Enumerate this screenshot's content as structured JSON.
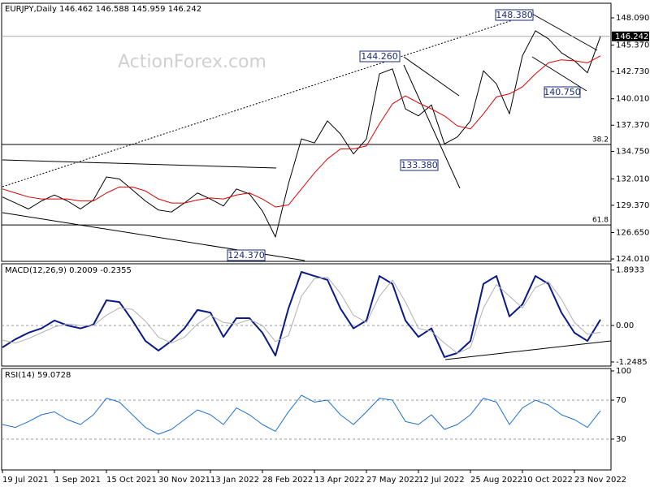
{
  "chart_data": [
    {
      "type": "line",
      "title": "EURJPY,Daily  146.462 146.588 145.959 146.242",
      "watermark": "ActionForex.com",
      "ylim": [
        123.77,
        149.55
      ],
      "yticks": [
        {
          "value": 148.09,
          "label": "148.090"
        },
        {
          "value": 145.37,
          "label": "145.370"
        },
        {
          "value": 142.73,
          "label": "142.730"
        },
        {
          "value": 140.01,
          "label": "140.010"
        },
        {
          "value": 137.37,
          "label": "137.370"
        },
        {
          "value": 134.75,
          "label": "134.750"
        },
        {
          "value": 132.01,
          "label": "132.010"
        },
        {
          "value": 129.37,
          "label": "129.370"
        },
        {
          "value": 126.65,
          "label": "126.650"
        },
        {
          "value": 124.01,
          "label": "124.010"
        }
      ],
      "last_price": 146.242,
      "levels": [
        {
          "value": 135.44,
          "label": "38.2"
        },
        {
          "value": 127.41,
          "label": "61.8"
        }
      ],
      "annotations": [
        "148.380",
        "144.260",
        "140.750",
        "133.380",
        "124.370"
      ],
      "series": [
        {
          "color": "#000000",
          "values": [
            130.2,
            129.6,
            129.0,
            129.8,
            130.4,
            129.8,
            129.0,
            129.9,
            132.2,
            132.0,
            130.9,
            129.8,
            128.9,
            128.7,
            129.6,
            130.6,
            130.0,
            129.3,
            131.0,
            130.5,
            128.8,
            126.2,
            131.5,
            136.0,
            135.6,
            137.8,
            136.5,
            134.5,
            136.0,
            142.5,
            143.0,
            139.0,
            138.3,
            139.4,
            135.5,
            136.2,
            137.8,
            142.8,
            141.5,
            138.5,
            144.3,
            146.8,
            146.0,
            144.6,
            143.8,
            142.6,
            146.242
          ]
        },
        {
          "color": "#e00000",
          "values": [
            131.0,
            130.6,
            130.2,
            130.0,
            130.0,
            130.0,
            129.8,
            129.8,
            130.6,
            131.2,
            131.2,
            130.8,
            130.0,
            129.6,
            129.6,
            129.9,
            130.1,
            130.0,
            130.4,
            130.6,
            130.0,
            129.2,
            129.4,
            131.0,
            132.6,
            134.0,
            135.0,
            135.0,
            135.3,
            137.5,
            139.5,
            140.3,
            139.6,
            139.0,
            138.3,
            137.3,
            137.0,
            138.5,
            140.2,
            140.5,
            141.2,
            142.5,
            143.6,
            143.9,
            143.8,
            143.6,
            144.3
          ]
        }
      ]
    },
    {
      "type": "line",
      "title": "MACD(12,26,9) 0.2009 -0.2355",
      "ylim": [
        -1.36,
        2.08
      ],
      "yticks": [
        1.8933,
        {
          "value": 0,
          "label": "0.00"
        },
        -1.2485
      ],
      "zero_line": true,
      "series": [
        {
          "color": "#0a1a8a",
          "width": 2,
          "values": [
            -0.75,
            -0.47,
            -0.25,
            -0.1,
            0.17,
            0.0,
            -0.1,
            0.03,
            0.86,
            0.8,
            0.17,
            -0.53,
            -0.86,
            -0.53,
            -0.1,
            0.53,
            0.44,
            -0.39,
            0.25,
            0.25,
            -0.25,
            -1.03,
            0.58,
            1.83,
            1.69,
            1.56,
            0.58,
            -0.1,
            0.17,
            1.69,
            1.42,
            0.17,
            -0.39,
            -0.1,
            -1.08,
            -0.94,
            -0.53,
            1.42,
            1.69,
            0.31,
            0.72,
            1.69,
            1.42,
            0.44,
            -0.25,
            -0.53,
            0.2009
          ]
        },
        {
          "color": "#b0b0b0",
          "width": 1,
          "values": [
            -0.5,
            -0.6,
            -0.45,
            -0.25,
            -0.05,
            0.05,
            0.0,
            0.0,
            0.35,
            0.6,
            0.55,
            0.15,
            -0.4,
            -0.6,
            -0.4,
            0.05,
            0.35,
            0.1,
            0.05,
            0.2,
            0.0,
            -0.55,
            -0.35,
            1.0,
            1.6,
            1.65,
            1.1,
            0.35,
            0.1,
            1.0,
            1.55,
            0.8,
            -0.1,
            -0.2,
            -0.6,
            -0.95,
            -0.75,
            0.6,
            1.4,
            1.0,
            0.6,
            1.3,
            1.5,
            0.9,
            0.1,
            -0.3,
            -0.2355
          ]
        }
      ]
    },
    {
      "type": "line",
      "title": "RSI(14) 59.0728",
      "ylim": [
        0,
        100
      ],
      "yticks": [
        100,
        70,
        30
      ],
      "grid": true,
      "categories": [
        "19 Jul 2021",
        null,
        null,
        null,
        "1 Sep 2021",
        null,
        null,
        null,
        "15 Oct 2021",
        null,
        null,
        null,
        "30 Nov 2021",
        null,
        null,
        null,
        "13 Jan 2022",
        null,
        null,
        null,
        "28 Feb 2022",
        null,
        null,
        null,
        "13 Apr 2022",
        null,
        null,
        null,
        "27 May 2022",
        null,
        null,
        null,
        "12 Jul 2022",
        null,
        null,
        null,
        "25 Aug 2022",
        null,
        null,
        null,
        "10 Oct 2022",
        null,
        null,
        null,
        "23 Nov 2022",
        null,
        null
      ],
      "series": [
        {
          "color": "#1e6fd0",
          "width": 1,
          "values": [
            45,
            42,
            48,
            55,
            58,
            50,
            45,
            55,
            72,
            68,
            55,
            42,
            35,
            40,
            50,
            60,
            55,
            45,
            62,
            55,
            45,
            38,
            58,
            75,
            68,
            70,
            55,
            45,
            58,
            72,
            70,
            48,
            45,
            55,
            40,
            45,
            55,
            72,
            68,
            45,
            62,
            70,
            65,
            55,
            50,
            42,
            59.0728
          ]
        }
      ]
    }
  ]
}
